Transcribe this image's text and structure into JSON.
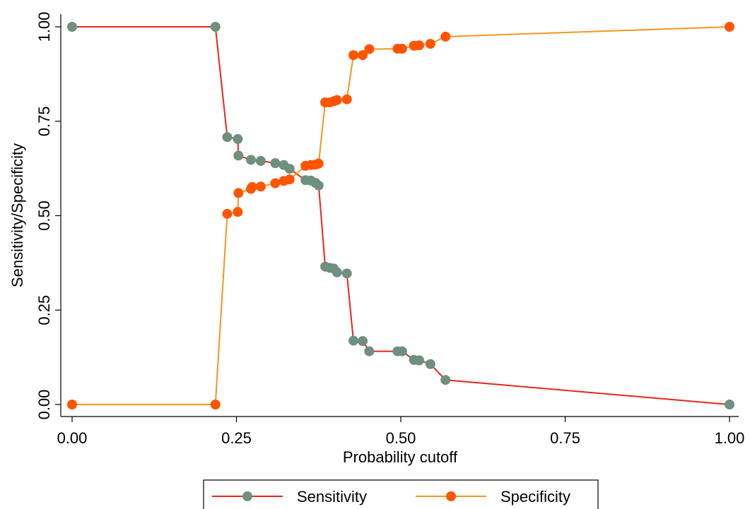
{
  "chart_data": {
    "type": "line",
    "xlabel": "Probability cutoff",
    "ylabel": "Sensitivity/Specificity",
    "xlim": [
      0,
      1
    ],
    "ylim": [
      0,
      1
    ],
    "x_ticks": [
      "0.00",
      "0.25",
      "0.50",
      "0.75",
      "1.00"
    ],
    "y_ticks": [
      "0.00",
      "0.25",
      "0.50",
      "0.75",
      "1.00"
    ],
    "grid": false,
    "legend_position": "bottom",
    "series": [
      {
        "name": "Sensitivity",
        "line_color": "#e8251f",
        "marker_color": "#6f8f7f",
        "points": [
          [
            0.0,
            1.0
          ],
          [
            0.218,
            1.0
          ],
          [
            0.236,
            0.708
          ],
          [
            0.252,
            0.703
          ],
          [
            0.253,
            0.659
          ],
          [
            0.272,
            0.648
          ],
          [
            0.287,
            0.645
          ],
          [
            0.309,
            0.639
          ],
          [
            0.322,
            0.634
          ],
          [
            0.331,
            0.624
          ],
          [
            0.355,
            0.594
          ],
          [
            0.363,
            0.593
          ],
          [
            0.37,
            0.587
          ],
          [
            0.375,
            0.58
          ],
          [
            0.385,
            0.365
          ],
          [
            0.392,
            0.362
          ],
          [
            0.398,
            0.36
          ],
          [
            0.403,
            0.35
          ],
          [
            0.418,
            0.347
          ],
          [
            0.428,
            0.169
          ],
          [
            0.442,
            0.168
          ],
          [
            0.452,
            0.141
          ],
          [
            0.495,
            0.141
          ],
          [
            0.502,
            0.141
          ],
          [
            0.52,
            0.118
          ],
          [
            0.528,
            0.117
          ],
          [
            0.545,
            0.107
          ],
          [
            0.568,
            0.065
          ],
          [
            1.0,
            0.0
          ]
        ]
      },
      {
        "name": "Specificity",
        "line_color": "#f5961e",
        "marker_color": "#ff5500",
        "points": [
          [
            0.0,
            0.0
          ],
          [
            0.218,
            0.0
          ],
          [
            0.236,
            0.505
          ],
          [
            0.252,
            0.51
          ],
          [
            0.253,
            0.56
          ],
          [
            0.272,
            0.571
          ],
          [
            0.274,
            0.576
          ],
          [
            0.287,
            0.577
          ],
          [
            0.309,
            0.586
          ],
          [
            0.322,
            0.592
          ],
          [
            0.331,
            0.596
          ],
          [
            0.355,
            0.632
          ],
          [
            0.363,
            0.634
          ],
          [
            0.37,
            0.635
          ],
          [
            0.375,
            0.638
          ],
          [
            0.385,
            0.8
          ],
          [
            0.392,
            0.8
          ],
          [
            0.398,
            0.803
          ],
          [
            0.403,
            0.806
          ],
          [
            0.418,
            0.808
          ],
          [
            0.428,
            0.925
          ],
          [
            0.442,
            0.925
          ],
          [
            0.452,
            0.941
          ],
          [
            0.495,
            0.942
          ],
          [
            0.502,
            0.942
          ],
          [
            0.52,
            0.95
          ],
          [
            0.528,
            0.951
          ],
          [
            0.545,
            0.955
          ],
          [
            0.568,
            0.974
          ],
          [
            1.0,
            1.0
          ]
        ]
      }
    ]
  }
}
